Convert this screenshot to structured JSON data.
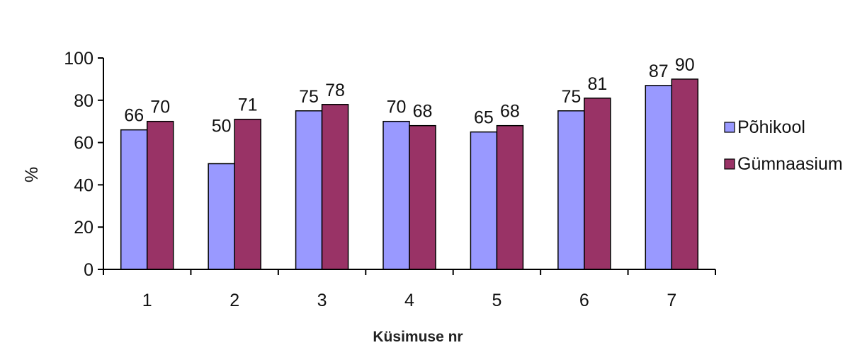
{
  "chart_data": {
    "type": "bar",
    "categories": [
      "1",
      "2",
      "3",
      "4",
      "5",
      "6",
      "7"
    ],
    "series": [
      {
        "name": "Põhikool",
        "values": [
          66,
          50,
          75,
          70,
          65,
          75,
          87
        ],
        "color": "#9999ff"
      },
      {
        "name": "Gümnaasium",
        "values": [
          70,
          71,
          78,
          68,
          68,
          81,
          90
        ],
        "color": "#993366"
      }
    ],
    "title": "",
    "xlabel": "Küsimuse nr",
    "ylabel": "%",
    "ylim": [
      0,
      100
    ],
    "yticks": [
      0,
      20,
      40,
      60,
      80,
      100
    ],
    "grid": false,
    "legend_position": "right"
  }
}
